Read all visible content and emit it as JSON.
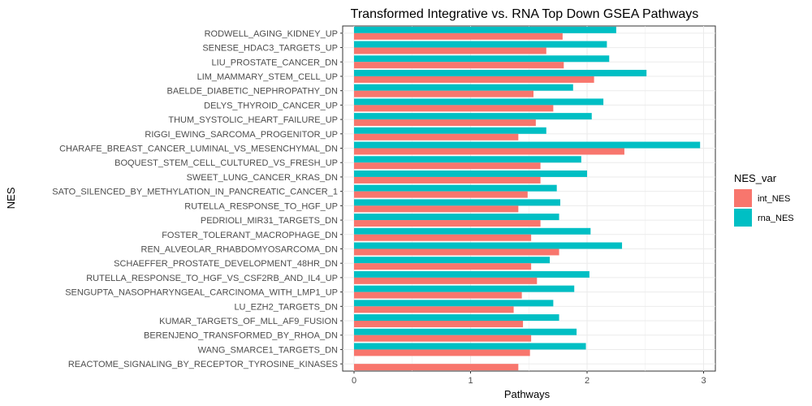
{
  "chart_data": {
    "type": "bar",
    "orientation": "horizontal",
    "title": "Transformed Integrative vs. RNA Top Down GSEA Pathways",
    "xlabel": "Pathways",
    "ylabel": "NES",
    "xlim": [
      0,
      3
    ],
    "xticks": [
      0,
      1,
      2,
      3
    ],
    "grid": true,
    "legend": {
      "title": "NES_var",
      "position": "right"
    },
    "categories": [
      "RODWELL_AGING_KIDNEY_UP",
      "SENESE_HDAC3_TARGETS_UP",
      "LIU_PROSTATE_CANCER_DN",
      "LIM_MAMMARY_STEM_CELL_UP",
      "BAELDE_DIABETIC_NEPHROPATHY_DN",
      "DELYS_THYROID_CANCER_UP",
      "THUM_SYSTOLIC_HEART_FAILURE_UP",
      "RIGGI_EWING_SARCOMA_PROGENITOR_UP",
      "CHARAFE_BREAST_CANCER_LUMINAL_VS_MESENCHYMAL_DN",
      "BOQUEST_STEM_CELL_CULTURED_VS_FRESH_UP",
      "SWEET_LUNG_CANCER_KRAS_DN",
      "SATO_SILENCED_BY_METHYLATION_IN_PANCREATIC_CANCER_1",
      "RUTELLA_RESPONSE_TO_HGF_UP",
      "PEDRIOLI_MIR31_TARGETS_DN",
      "FOSTER_TOLERANT_MACROPHAGE_DN",
      "REN_ALVEOLAR_RHABDOMYOSARCOMA_DN",
      "SCHAEFFER_PROSTATE_DEVELOPMENT_48HR_DN",
      "RUTELLA_RESPONSE_TO_HGF_VS_CSF2RB_AND_IL4_UP",
      "SENGUPTA_NASOPHARYNGEAL_CARCINOMA_WITH_LMP1_UP",
      "LU_EZH2_TARGETS_DN",
      "KUMAR_TARGETS_OF_MLL_AF9_FUSION",
      "BERENJENO_TRANSFORMED_BY_RHOA_DN",
      "WANG_SMARCE1_TARGETS_DN",
      "REACTOME_SIGNALING_BY_RECEPTOR_TYROSINE_KINASES"
    ],
    "series": [
      {
        "name": "int_NES",
        "color": "#F8766D",
        "values": [
          1.79,
          1.65,
          1.8,
          2.06,
          1.54,
          1.71,
          1.56,
          1.41,
          2.32,
          1.6,
          1.6,
          1.49,
          1.41,
          1.6,
          1.52,
          1.76,
          1.52,
          1.57,
          1.44,
          1.37,
          1.45,
          1.52,
          1.51,
          1.41
        ]
      },
      {
        "name": "rna_NES",
        "color": "#00BFC4",
        "values": [
          2.25,
          2.17,
          2.19,
          2.51,
          1.88,
          2.14,
          2.04,
          1.65,
          2.97,
          1.95,
          2.0,
          1.74,
          1.77,
          1.76,
          2.03,
          2.3,
          1.68,
          2.02,
          1.89,
          1.71,
          1.76,
          1.91,
          1.99,
          null
        ]
      }
    ]
  }
}
